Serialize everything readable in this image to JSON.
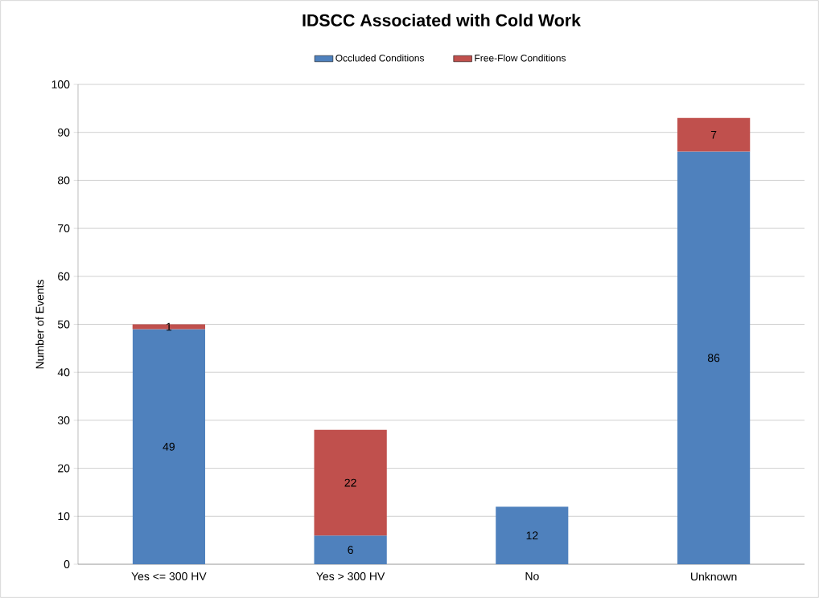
{
  "chart_data": {
    "type": "bar",
    "title": "IDSCC Associated with Cold Work",
    "ylabel": "Number of Events",
    "categories": [
      "Yes <= 300 HV",
      "Yes > 300 HV",
      "No",
      "Unknown"
    ],
    "series": [
      {
        "name": "Occluded Conditions",
        "color": "#4f81bd",
        "values": [
          49,
          6,
          12,
          86
        ]
      },
      {
        "name": "Free-Flow Conditions",
        "color": "#c0504d",
        "values": [
          1,
          22,
          null,
          7
        ]
      }
    ],
    "stacked": true,
    "ylim": [
      0,
      100
    ],
    "yticks": [
      0,
      10,
      20,
      30,
      40,
      50,
      60,
      70,
      80,
      90,
      100
    ],
    "grid": "y",
    "legend": "top",
    "data_labels": true
  }
}
